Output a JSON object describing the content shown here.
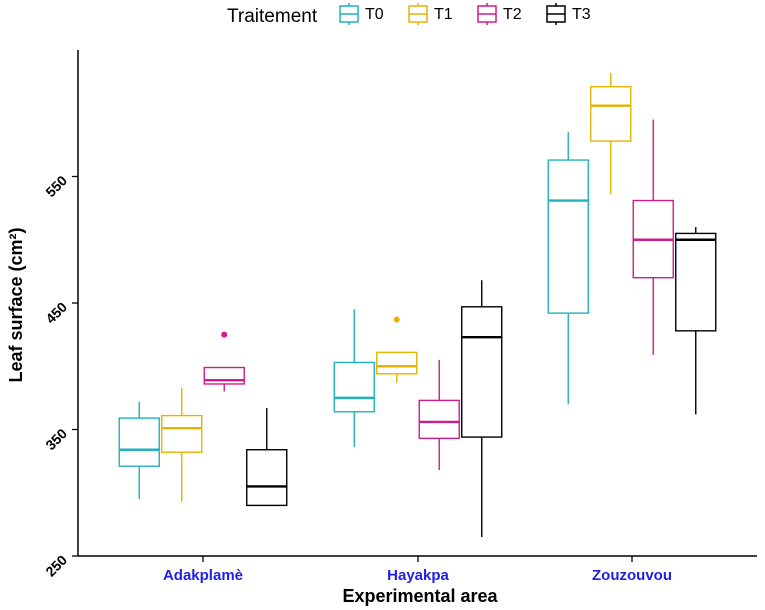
{
  "chart_data": {
    "type": "boxplot",
    "title": "",
    "xlabel": "Experimental area",
    "ylabel": "Leaf surface (cm²)",
    "ylim": [
      250,
      650
    ],
    "yticks": [
      250,
      350,
      450,
      550
    ],
    "categories": [
      "Adakplamè",
      "Hayakpa",
      "Zouzouvou"
    ],
    "category_label_color": "#1F1FE6",
    "legend": {
      "title": "Traitement",
      "position": "top"
    },
    "series": [
      {
        "name": "T0",
        "color": "#20B2BE",
        "boxes": [
          {
            "min": 295,
            "q1": 321,
            "median": 334,
            "q3": 359,
            "max": 372
          },
          {
            "min": 336,
            "q1": 364,
            "median": 375,
            "q3": 403,
            "max": 445
          },
          {
            "min": 370,
            "q1": 442,
            "median": 531,
            "q3": 563,
            "max": 585
          }
        ],
        "outliers": [
          [],
          [],
          []
        ]
      },
      {
        "name": "T1",
        "color": "#E6B400",
        "boxes": [
          {
            "min": 293,
            "q1": 332,
            "median": 351,
            "q3": 361,
            "max": 383
          },
          {
            "min": 387,
            "q1": 394,
            "median": 400,
            "q3": 411,
            "max": 411
          },
          {
            "min": 536,
            "q1": 578,
            "median": 606,
            "q3": 621,
            "max": 632
          }
        ],
        "outliers": [
          [],
          [
            437
          ],
          []
        ]
      },
      {
        "name": "T2",
        "color": "#D01C8B",
        "boxes": [
          {
            "min": 380,
            "q1": 386,
            "median": 389,
            "q3": 399,
            "max": 399
          },
          {
            "min": 318,
            "q1": 343,
            "median": 356,
            "q3": 373,
            "max": 405
          },
          {
            "min": 409,
            "q1": 470,
            "median": 500,
            "q3": 531,
            "max": 595
          }
        ],
        "outliers": [
          [
            425
          ],
          [],
          []
        ]
      },
      {
        "name": "T3",
        "color": "#000000",
        "boxes": [
          {
            "min": 290,
            "q1": 290,
            "median": 305,
            "q3": 334,
            "max": 367
          },
          {
            "min": 265,
            "q1": 344,
            "median": 423,
            "q3": 447,
            "max": 468
          },
          {
            "min": 362,
            "q1": 428,
            "median": 500,
            "q3": 505,
            "max": 510
          }
        ],
        "outliers": [
          [],
          [],
          []
        ]
      }
    ]
  }
}
